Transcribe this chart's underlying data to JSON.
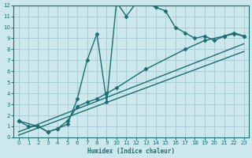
{
  "xlabel": "Humidex (Indice chaleur)",
  "bg_color": "#cce8ec",
  "grid_color": "#aacdd4",
  "line_color": "#1a6e6e",
  "xlim": [
    -0.5,
    23.5
  ],
  "ylim": [
    0,
    12
  ],
  "xticks": [
    0,
    1,
    2,
    3,
    4,
    5,
    6,
    7,
    8,
    9,
    10,
    11,
    12,
    13,
    14,
    15,
    16,
    17,
    18,
    19,
    20,
    21,
    22,
    23
  ],
  "yticks": [
    0,
    1,
    2,
    3,
    4,
    5,
    6,
    7,
    8,
    9,
    10,
    11,
    12
  ],
  "line1_x": [
    0,
    1,
    2,
    3,
    4,
    5,
    6,
    7,
    8,
    9,
    10,
    11,
    12,
    13,
    14,
    15,
    16,
    17,
    18,
    19,
    20,
    21,
    22,
    23
  ],
  "line1_y": [
    1.5,
    1.0,
    1.0,
    0.5,
    0.8,
    1.2,
    3.5,
    7.0,
    9.4,
    3.2,
    12.3,
    11.0,
    12.2,
    12.3,
    11.8,
    11.5,
    10.0,
    9.5,
    9.0,
    9.2,
    8.8,
    9.2,
    9.5,
    9.2
  ],
  "line2_x": [
    0,
    2,
    3,
    4,
    5,
    6,
    7,
    8,
    9,
    10,
    13,
    17,
    19,
    21,
    22,
    23
  ],
  "line2_y": [
    1.5,
    1.0,
    0.5,
    0.8,
    1.5,
    2.8,
    3.2,
    3.5,
    4.0,
    4.5,
    6.2,
    8.0,
    8.8,
    9.2,
    9.4,
    9.2
  ],
  "line3_x": [
    0,
    23
  ],
  "line3_y": [
    0.5,
    8.5
  ],
  "line4_x": [
    0,
    23
  ],
  "line4_y": [
    0.2,
    7.8
  ],
  "marker": "D",
  "markersize": 2.5,
  "linewidth": 1.0
}
